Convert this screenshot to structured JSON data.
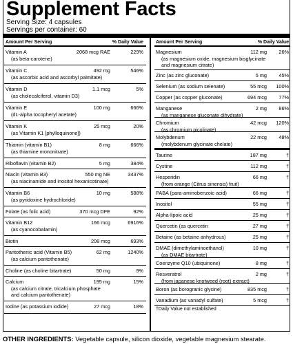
{
  "title": "Supplement Facts",
  "serving_size": "Serving Size: 4 capsules",
  "servings_per_container": "Servings per container: 60",
  "header": {
    "amount": "Amount Per Serving",
    "dv": "% Daily Value"
  },
  "left": [
    {
      "name": "Vitamin A",
      "sub": [
        "(as beta-carotene)"
      ],
      "amount": "2068 mcg RAE",
      "dv": "229%"
    },
    {
      "name": "Vitamin C",
      "sub": [
        "(as ascorbic acid and ascorbyl palmitate)"
      ],
      "amount": "492 mg",
      "dv": "546%"
    },
    {
      "name": "Vitamin D",
      "sub": [
        "(as cholecalciferol, vitamin D3)"
      ],
      "amount": "1.1 mcg",
      "dv": "5%"
    },
    {
      "name": "Vitamin E",
      "sub": [
        "(dL-alpha tocopheryl acetate)"
      ],
      "amount": "100 mg",
      "dv": "666%"
    },
    {
      "name": "Vitamin K",
      "sub": [
        "(as Vitamin K1 [phylloquinone])"
      ],
      "amount": "25 mcg",
      "dv": "20%"
    },
    {
      "name": "Thiamin (vitamin B1)",
      "sub": [
        "(as thiamine mononitrate)"
      ],
      "amount": "8 mg",
      "dv": "666%"
    },
    {
      "name": "Riboflavin (vitamin B2)",
      "sub": [],
      "amount": "5 mg",
      "dv": "384%"
    },
    {
      "name": "Niacin (vitamin B3)",
      "sub": [
        "(as niacinamide and inositol hexanicotinate)"
      ],
      "amount": "550 mg NE",
      "dv": "3437%"
    },
    {
      "name": "Vitamin B6",
      "sub": [
        "(as pyridoxine hydrochloride)"
      ],
      "amount": "10 mg",
      "dv": "588%"
    },
    {
      "name": "Folate (as folic acid)",
      "sub": [],
      "amount": "370 mcg DFE",
      "dv": "92%"
    },
    {
      "name": "Vitamin B12",
      "sub": [
        "(as cyanocobalamin)"
      ],
      "amount": "166 mcg",
      "dv": "6916%"
    },
    {
      "name": "Biotin",
      "sub": [],
      "amount": "208 mcg",
      "dv": "693%"
    },
    {
      "name": "Pantothenic acid (Vitamin B5)",
      "sub": [
        "(as calcium pantothenate)"
      ],
      "amount": "62 mg",
      "dv": "1240%"
    },
    {
      "name": "Choline (as choline bitartrate)",
      "sub": [],
      "amount": "50 mg",
      "dv": "9%"
    },
    {
      "name": "Calcium",
      "sub": [
        "(as calcium citrate, tricalcium phosphate",
        "and calcium pantothenate)"
      ],
      "amount": "195 mg",
      "dv": "15%"
    },
    {
      "name": "Iodine (as potassium iodide)",
      "sub": [],
      "amount": "27 mcg",
      "dv": "18%"
    }
  ],
  "right": [
    {
      "name": "Magnesium",
      "sub": [
        "(as magnesium oxide, magnesium bisglycinate",
        "and magnesium citrate)"
      ],
      "amount": "112 mg",
      "dv": "26%"
    },
    {
      "name": "Zinc (as zinc gluconate)",
      "sub": [],
      "amount": "5 mg",
      "dv": "45%"
    },
    {
      "name": "Selenium (as sodium selenate)",
      "sub": [],
      "amount": "55 mcg",
      "dv": "100%"
    },
    {
      "name": "Copper (as copper gluconate)",
      "sub": [],
      "amount": "694 mcg",
      "dv": "77%"
    },
    {
      "name": "Manganese",
      "sub": [
        "(as manganese gluconate dihydrate)"
      ],
      "amount": "2 mg",
      "dv": "86%"
    },
    {
      "name": "Chromium",
      "sub": [
        "(as chromium picolinate)"
      ],
      "amount": "42 mcg",
      "dv": "120%"
    },
    {
      "name": "Molybdenum",
      "sub": [
        "(molybdenum glycinate chelate)"
      ],
      "amount": "22 mcg",
      "dv": "48%"
    },
    {
      "name": "Taurine",
      "sub": [],
      "amount": "187 mg",
      "dv": "†"
    },
    {
      "name": "Cystine",
      "sub": [],
      "amount": "112 mg",
      "dv": "†"
    },
    {
      "name": "Hesperidin",
      "sub": [
        "(from orange (Citrus sinensis) fruit)"
      ],
      "amount": "66 mg",
      "dv": "†"
    },
    {
      "name": "PABA (para-aminobenzoic acid)",
      "sub": [],
      "amount": "66 mg",
      "dv": "†"
    },
    {
      "name": "Inositol",
      "sub": [],
      "amount": "55 mg",
      "dv": "†"
    },
    {
      "name": "Alpha-lipoic acid",
      "sub": [],
      "amount": "25 mg",
      "dv": "†"
    },
    {
      "name": "Quercetin (as quercetin",
      "sub": [],
      "amount": "27 mg",
      "dv": "†"
    },
    {
      "name": "Betaine (as betaine anhydrous)",
      "sub": [],
      "amount": "25 mg",
      "dv": "†"
    },
    {
      "name": "DMAE (dimethylaminoethanol)",
      "sub": [
        "(as DMAE bitartrate)"
      ],
      "amount": "10 mg",
      "dv": "†"
    },
    {
      "name": "Coenzyme Q10 (ubiquinone)",
      "sub": [],
      "amount": "8 mg",
      "dv": "†"
    },
    {
      "name": "Resveratrol",
      "sub": [
        "(from japanese knotweed (root) extract)"
      ],
      "amount": "2 mg",
      "dv": "†"
    },
    {
      "name": "Boron (as borogranic glycine)",
      "sub": [],
      "amount": "835 mcg",
      "dv": "†"
    },
    {
      "name": "Vanadium (as vanadyl sulfate)",
      "sub": [],
      "amount": "5 mcg",
      "dv": "†"
    }
  ],
  "footnote": "†Daily Value not established",
  "other_label": "OTHER INGREDIENTS:",
  "other_text": " Vegetable capsule, silicon dioxide, vegetable magnesium stearate."
}
